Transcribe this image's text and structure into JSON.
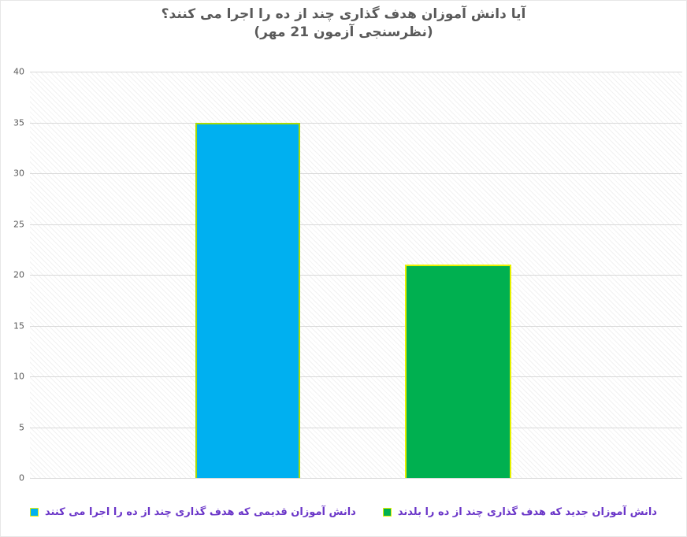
{
  "title": {
    "line1": "آیا دانش آموزان هدف گذاری چند از ده را  اجرا می کنند؟",
    "line2": "(نظرسنجی آزمون 21 مهر)"
  },
  "chart_data": {
    "type": "bar",
    "title": "آیا دانش آموزان هدف گذاری چند از ده را اجرا می کنند؟ (نظرسنجی آزمون 21 مهر)",
    "categories": [
      "دانش آموزان قدیمی که هدف گذاری چند از ده را اجرا می کنند",
      "دانش آموزان جدید که هدف گذاری چند از ده را بلدند"
    ],
    "values": [
      35,
      21
    ],
    "xlabel": "",
    "ylabel": "",
    "ylim": [
      0,
      40
    ],
    "ytick_step": 5,
    "grid": true,
    "legend_position": "bottom",
    "bars": [
      {
        "name": "old-students",
        "value": 35,
        "fill": "#00b0f0",
        "border": "#a9d908",
        "center_frac": 0.334,
        "width_frac": 0.161
      },
      {
        "name": "new-students",
        "value": 21,
        "fill": "#00b050",
        "border": "#e8f000",
        "center_frac": 0.656,
        "width_frac": 0.163
      }
    ]
  },
  "y_axis": {
    "ticks": [
      "40",
      "35",
      "30",
      "25",
      "20",
      "15",
      "10",
      "5",
      "0"
    ]
  },
  "legend": {
    "text_color": "#6a35c8",
    "items": [
      {
        "label": "دانش آموزان جدید که هدف گذاری چند از ده را بلدند",
        "icon": "green-square-icon",
        "swatch_color": "#00b050",
        "swatch_border": "#e8f000"
      },
      {
        "label": "دانش آموزان قدیمی که هدف گذاری چند از ده را اجرا می کنند",
        "icon": "cyan-square-icon",
        "swatch_color": "#00b0f0",
        "swatch_border": "#e8f000"
      }
    ]
  },
  "colors": {
    "title": "#595959",
    "axis_label": "#595959",
    "gridline": "#d9d9d9",
    "background": "#ffffff"
  }
}
